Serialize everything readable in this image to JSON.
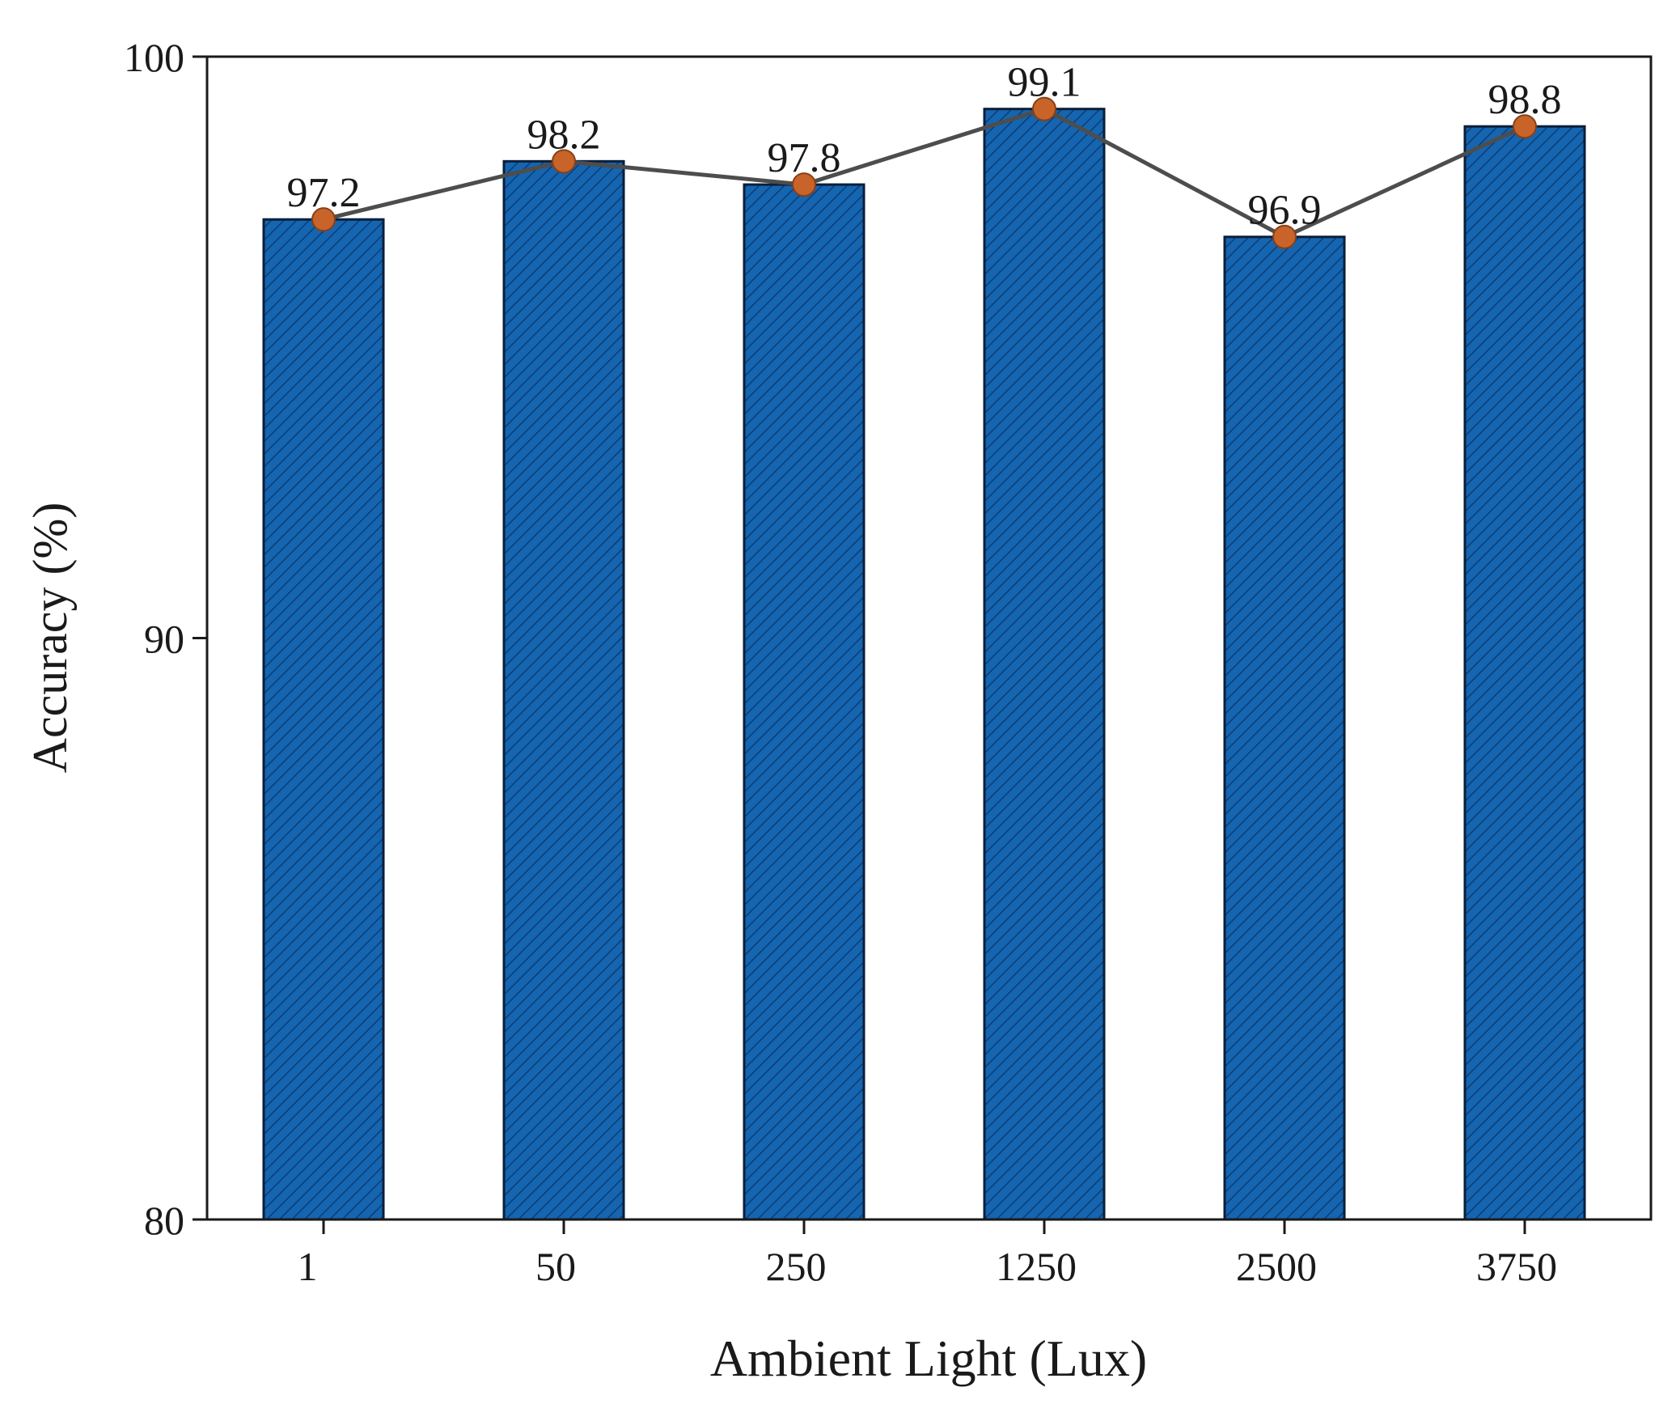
{
  "chart_data": {
    "type": "bar",
    "title": "",
    "xlabel": "Ambient Light (Lux)",
    "ylabel": "Accuracy (%)",
    "categories": [
      "1",
      "50",
      "250",
      "1250",
      "2500",
      "3750"
    ],
    "values": [
      97.2,
      98.2,
      97.8,
      99.1,
      96.9,
      98.8
    ],
    "data_labels": [
      "97.2",
      "98.2",
      "97.8",
      "99.1",
      "96.9",
      "98.8"
    ],
    "ylim": [
      80,
      100
    ],
    "yticks": [
      80,
      90,
      100
    ],
    "ytick_labels": [
      "80",
      "90",
      "100"
    ],
    "grid": false,
    "overlay_line": true,
    "colors": {
      "bar_fill": "#1565b0",
      "bar_stroke": "#0a1f3a",
      "hatch": "#0d3d73",
      "line": "#4d4d4d",
      "marker": "#c8642a",
      "marker_stroke": "#8a3f14",
      "axis": "#1a1a1a"
    }
  }
}
